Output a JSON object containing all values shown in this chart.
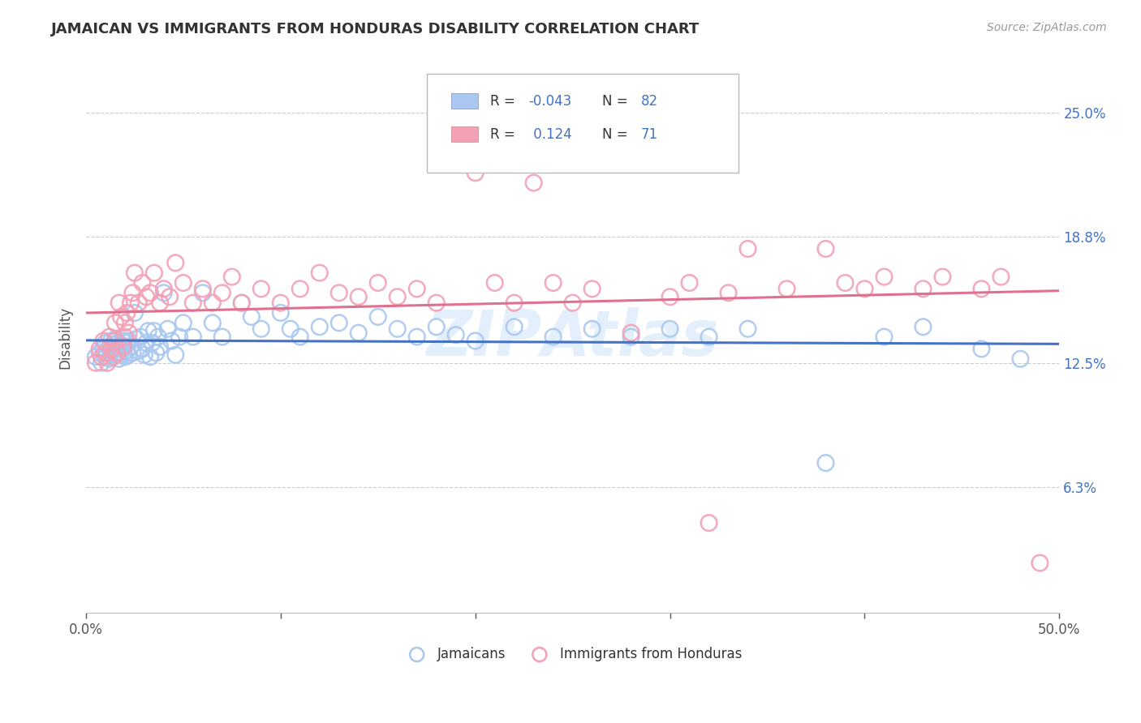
{
  "title": "JAMAICAN VS IMMIGRANTS FROM HONDURAS DISABILITY CORRELATION CHART",
  "source": "Source: ZipAtlas.com",
  "ylabel": "Disability",
  "xlim": [
    0.0,
    0.5
  ],
  "ylim": [
    0.0,
    0.275
  ],
  "yticks": [
    0.063,
    0.125,
    0.188,
    0.25
  ],
  "ytick_labels": [
    "6.3%",
    "12.5%",
    "18.8%",
    "25.0%"
  ],
  "xticks": [
    0.0,
    0.1,
    0.2,
    0.3,
    0.4,
    0.5
  ],
  "xtick_labels": [
    "0.0%",
    "",
    "",
    "",
    "",
    "50.0%"
  ],
  "jamaicans_R": -0.043,
  "jamaicans_N": 82,
  "honduras_R": 0.124,
  "honduras_N": 71,
  "jamaicans_color": "#A8C8F0",
  "honduras_color": "#F4A0B5",
  "jamaicans_line_color": "#4472C4",
  "honduras_line_color": "#E07090",
  "background_color": "#FFFFFF",
  "grid_color": "#CCCCCC",
  "watermark": "ZIPAtlas",
  "jamaicans_x": [
    0.005,
    0.007,
    0.008,
    0.009,
    0.01,
    0.01,
    0.011,
    0.012,
    0.012,
    0.013,
    0.013,
    0.014,
    0.014,
    0.015,
    0.015,
    0.016,
    0.016,
    0.017,
    0.017,
    0.018,
    0.018,
    0.019,
    0.019,
    0.02,
    0.02,
    0.021,
    0.021,
    0.022,
    0.022,
    0.023,
    0.024,
    0.025,
    0.026,
    0.027,
    0.028,
    0.029,
    0.03,
    0.031,
    0.032,
    0.033,
    0.034,
    0.035,
    0.036,
    0.037,
    0.038,
    0.04,
    0.042,
    0.044,
    0.046,
    0.048,
    0.05,
    0.055,
    0.06,
    0.065,
    0.07,
    0.08,
    0.085,
    0.09,
    0.1,
    0.105,
    0.11,
    0.12,
    0.13,
    0.14,
    0.15,
    0.16,
    0.17,
    0.18,
    0.19,
    0.2,
    0.22,
    0.24,
    0.26,
    0.28,
    0.3,
    0.32,
    0.34,
    0.38,
    0.41,
    0.43,
    0.46,
    0.48
  ],
  "jamaicans_y": [
    0.128,
    0.13,
    0.125,
    0.132,
    0.135,
    0.128,
    0.13,
    0.133,
    0.127,
    0.131,
    0.136,
    0.128,
    0.134,
    0.13,
    0.137,
    0.129,
    0.135,
    0.132,
    0.127,
    0.134,
    0.13,
    0.136,
    0.129,
    0.133,
    0.128,
    0.135,
    0.131,
    0.136,
    0.129,
    0.133,
    0.13,
    0.15,
    0.137,
    0.131,
    0.138,
    0.132,
    0.129,
    0.135,
    0.141,
    0.128,
    0.135,
    0.141,
    0.13,
    0.138,
    0.133,
    0.16,
    0.142,
    0.136,
    0.129,
    0.138,
    0.145,
    0.138,
    0.16,
    0.145,
    0.138,
    0.155,
    0.148,
    0.142,
    0.15,
    0.142,
    0.138,
    0.143,
    0.145,
    0.14,
    0.148,
    0.142,
    0.138,
    0.143,
    0.139,
    0.136,
    0.143,
    0.138,
    0.142,
    0.138,
    0.142,
    0.138,
    0.142,
    0.075,
    0.138,
    0.143,
    0.132,
    0.127
  ],
  "honduras_x": [
    0.005,
    0.007,
    0.008,
    0.009,
    0.01,
    0.011,
    0.012,
    0.013,
    0.014,
    0.015,
    0.015,
    0.016,
    0.017,
    0.018,
    0.019,
    0.02,
    0.02,
    0.021,
    0.022,
    0.023,
    0.024,
    0.025,
    0.027,
    0.029,
    0.031,
    0.033,
    0.035,
    0.038,
    0.04,
    0.043,
    0.046,
    0.05,
    0.055,
    0.06,
    0.065,
    0.07,
    0.075,
    0.08,
    0.09,
    0.1,
    0.11,
    0.12,
    0.13,
    0.14,
    0.15,
    0.16,
    0.17,
    0.18,
    0.2,
    0.21,
    0.22,
    0.23,
    0.24,
    0.25,
    0.26,
    0.28,
    0.3,
    0.31,
    0.32,
    0.33,
    0.34,
    0.36,
    0.38,
    0.39,
    0.4,
    0.41,
    0.43,
    0.44,
    0.46,
    0.47,
    0.49
  ],
  "honduras_y": [
    0.125,
    0.132,
    0.128,
    0.136,
    0.13,
    0.125,
    0.138,
    0.132,
    0.128,
    0.136,
    0.145,
    0.13,
    0.155,
    0.148,
    0.133,
    0.138,
    0.145,
    0.15,
    0.14,
    0.155,
    0.16,
    0.17,
    0.155,
    0.165,
    0.158,
    0.16,
    0.17,
    0.155,
    0.162,
    0.158,
    0.175,
    0.165,
    0.155,
    0.162,
    0.155,
    0.16,
    0.168,
    0.155,
    0.162,
    0.155,
    0.162,
    0.17,
    0.16,
    0.158,
    0.165,
    0.158,
    0.162,
    0.155,
    0.22,
    0.165,
    0.155,
    0.215,
    0.165,
    0.155,
    0.162,
    0.14,
    0.158,
    0.165,
    0.045,
    0.16,
    0.182,
    0.162,
    0.182,
    0.165,
    0.162,
    0.168,
    0.162,
    0.168,
    0.162,
    0.168,
    0.025
  ]
}
